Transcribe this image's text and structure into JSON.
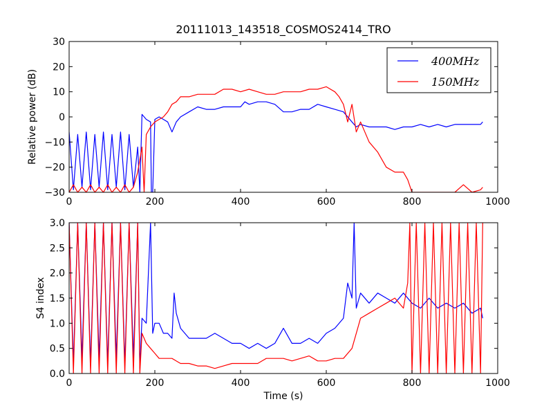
{
  "figure": {
    "title": "20111013_143518_COSMOS2414_TRO"
  },
  "chart_data": [
    {
      "type": "line",
      "ylabel": "Relative power (dB)",
      "xlabel": "",
      "xlim": [
        0,
        1000
      ],
      "ylim": [
        -30,
        30
      ],
      "xticks": [
        "0",
        "200",
        "400",
        "600",
        "800",
        "1000"
      ],
      "yticks": [
        "−30",
        "−20",
        "−10",
        "0",
        "10",
        "20",
        "30"
      ],
      "xtick_values": [
        0,
        200,
        400,
        600,
        800,
        1000
      ],
      "ytick_values": [
        -30,
        -20,
        -10,
        0,
        10,
        20,
        30
      ],
      "legend": {
        "placement": "top-right"
      },
      "series": [
        {
          "name": "400MHz",
          "color": "#0000ff",
          "x": [
            0,
            10,
            20,
            30,
            40,
            50,
            60,
            70,
            80,
            90,
            100,
            110,
            120,
            130,
            140,
            150,
            160,
            165,
            170,
            175,
            180,
            190,
            192,
            195,
            200,
            210,
            220,
            230,
            240,
            250,
            260,
            280,
            300,
            320,
            340,
            360,
            380,
            400,
            410,
            420,
            440,
            460,
            480,
            500,
            520,
            540,
            560,
            580,
            600,
            620,
            640,
            660,
            670,
            680,
            700,
            720,
            740,
            760,
            780,
            800,
            820,
            840,
            860,
            880,
            900,
            920,
            940,
            960,
            965
          ],
          "y": [
            -6,
            -29,
            -7,
            -28,
            -6,
            -29,
            -7,
            -28,
            -6,
            -29,
            -7,
            -28,
            -6,
            -29,
            -7,
            -28,
            -12,
            -30,
            1,
            0,
            -1,
            -2,
            -30,
            -30,
            -1,
            0,
            -1,
            -2,
            -6,
            -2,
            0,
            2,
            4,
            3,
            3,
            4,
            4,
            4,
            6,
            5,
            6,
            6,
            5,
            2,
            2,
            3,
            3,
            5,
            4,
            3,
            2,
            -2,
            -4,
            -3,
            -4,
            -4,
            -4,
            -5,
            -4,
            -4,
            -3,
            -4,
            -3,
            -4,
            -3,
            -3,
            -3,
            -3,
            -2
          ]
        },
        {
          "name": "150MHz",
          "color": "#ff0000",
          "x": [
            0,
            10,
            20,
            30,
            40,
            50,
            60,
            70,
            80,
            90,
            100,
            110,
            120,
            130,
            140,
            150,
            160,
            170,
            175,
            180,
            190,
            200,
            210,
            220,
            230,
            240,
            250,
            260,
            280,
            300,
            320,
            340,
            360,
            380,
            400,
            420,
            440,
            460,
            480,
            500,
            520,
            540,
            560,
            580,
            600,
            620,
            630,
            640,
            650,
            660,
            670,
            680,
            700,
            720,
            740,
            760,
            780,
            790,
            800,
            820,
            840,
            860,
            880,
            900,
            920,
            940,
            960,
            965
          ],
          "y": [
            -30,
            -27,
            -30,
            -28,
            -30,
            -27,
            -30,
            -28,
            -30,
            -27,
            -30,
            -28,
            -30,
            -27,
            -30,
            -28,
            -22,
            -12,
            -30,
            -7,
            -4,
            -2,
            -1,
            0,
            2,
            5,
            6,
            8,
            8,
            9,
            9,
            9,
            11,
            11,
            10,
            11,
            10,
            9,
            9,
            10,
            10,
            10,
            11,
            11,
            12,
            10,
            8,
            5,
            -2,
            5,
            -6,
            -2,
            -10,
            -14,
            -20,
            -22,
            -22,
            -25,
            -30,
            -30,
            -30,
            -30,
            -30,
            -30,
            -27,
            -30,
            -29,
            -28
          ]
        }
      ]
    },
    {
      "type": "line",
      "ylabel": "S4 index",
      "xlabel": "Time (s)",
      "xlim": [
        0,
        1000
      ],
      "ylim": [
        0,
        3
      ],
      "xticks": [
        "0",
        "200",
        "400",
        "600",
        "800",
        "1000"
      ],
      "yticks": [
        "0.0",
        "0.5",
        "1.0",
        "1.5",
        "2.0",
        "2.5",
        "3.0"
      ],
      "xtick_values": [
        0,
        200,
        400,
        600,
        800,
        1000
      ],
      "ytick_values": [
        0,
        0.5,
        1,
        1.5,
        2,
        2.5,
        3
      ],
      "series": [
        {
          "name": "400MHz",
          "color": "#0000ff",
          "x": [
            0,
            10,
            20,
            30,
            40,
            50,
            60,
            70,
            80,
            90,
            100,
            110,
            120,
            130,
            140,
            150,
            160,
            165,
            170,
            180,
            190,
            195,
            200,
            210,
            220,
            230,
            240,
            245,
            250,
            260,
            280,
            300,
            320,
            340,
            360,
            380,
            400,
            420,
            440,
            460,
            480,
            500,
            520,
            540,
            560,
            580,
            600,
            620,
            640,
            650,
            660,
            665,
            670,
            680,
            700,
            720,
            740,
            760,
            780,
            800,
            820,
            840,
            860,
            880,
            900,
            920,
            940,
            960,
            965
          ],
          "y": [
            3,
            0.2,
            3,
            0.3,
            3,
            0.2,
            3,
            0.3,
            3,
            0.2,
            3,
            0.3,
            3,
            0.2,
            3,
            0.3,
            3,
            0.1,
            1.1,
            1,
            3,
            0.8,
            1,
            1,
            0.8,
            0.8,
            0.7,
            1.6,
            1.2,
            0.9,
            0.7,
            0.7,
            0.7,
            0.8,
            0.7,
            0.6,
            0.6,
            0.5,
            0.6,
            0.5,
            0.6,
            0.9,
            0.6,
            0.6,
            0.7,
            0.6,
            0.8,
            0.9,
            1.1,
            1.8,
            1.5,
            3,
            1.3,
            1.6,
            1.4,
            1.6,
            1.5,
            1.4,
            1.6,
            1.4,
            1.3,
            1.5,
            1.3,
            1.4,
            1.3,
            1.4,
            1.2,
            1.3,
            1.1
          ]
        },
        {
          "name": "150MHz",
          "color": "#ff0000",
          "x": [
            0,
            10,
            20,
            30,
            40,
            50,
            60,
            70,
            80,
            90,
            100,
            110,
            120,
            130,
            140,
            150,
            160,
            165,
            170,
            180,
            190,
            200,
            210,
            220,
            240,
            260,
            280,
            300,
            320,
            340,
            360,
            380,
            400,
            420,
            440,
            460,
            480,
            500,
            520,
            540,
            560,
            580,
            600,
            620,
            640,
            660,
            670,
            680,
            700,
            720,
            740,
            760,
            780,
            790,
            795,
            800,
            810,
            820,
            830,
            840,
            850,
            860,
            870,
            880,
            890,
            900,
            910,
            920,
            930,
            940,
            950,
            960,
            965
          ],
          "y": [
            3,
            0,
            3,
            0,
            3,
            0,
            3,
            0,
            3,
            0,
            3,
            0,
            3,
            0,
            3,
            0,
            3,
            0,
            0.8,
            0.6,
            0.5,
            0.4,
            0.3,
            0.3,
            0.3,
            0.2,
            0.2,
            0.15,
            0.15,
            0.1,
            0.15,
            0.2,
            0.2,
            0.2,
            0.2,
            0.3,
            0.3,
            0.3,
            0.25,
            0.3,
            0.35,
            0.25,
            0.25,
            0.3,
            0.3,
            0.5,
            0.8,
            1.1,
            1.2,
            1.3,
            1.4,
            1.5,
            1.3,
            1.8,
            3,
            0,
            3,
            0,
            3,
            0,
            3,
            0,
            3,
            0,
            3,
            0,
            3,
            0,
            3,
            0,
            3,
            0,
            3
          ]
        }
      ]
    }
  ]
}
